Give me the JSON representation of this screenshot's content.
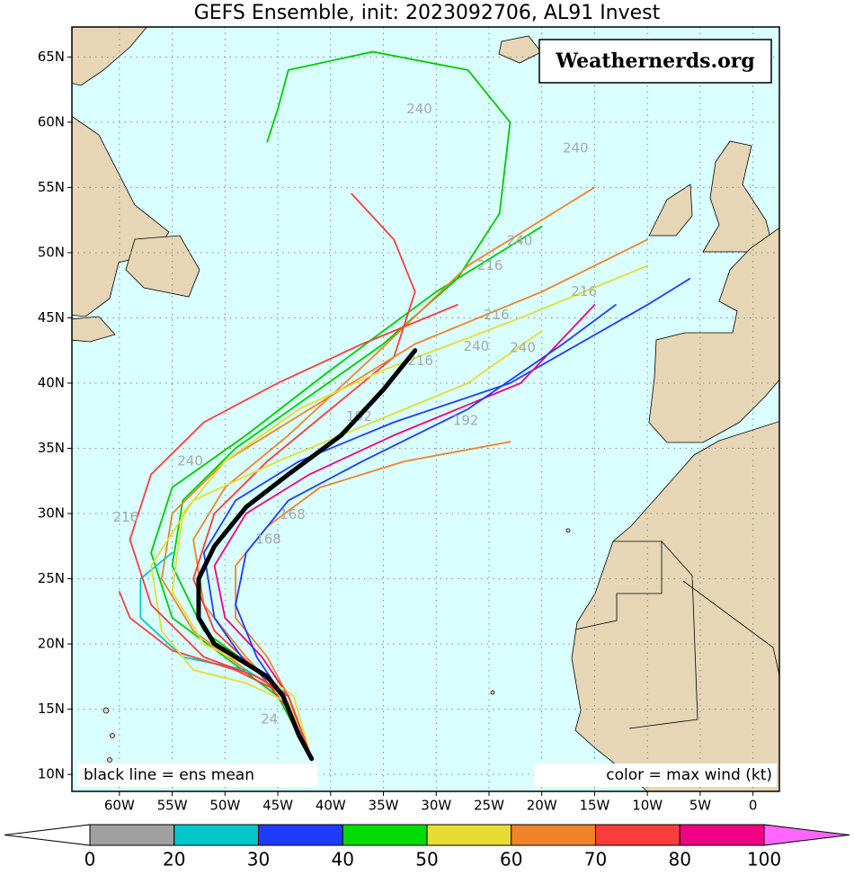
{
  "chart_data": {
    "type": "track-map",
    "title": "GEFS Ensemble, init: 2023092706, AL91 Invest",
    "watermark": "Weathernerds.org",
    "mean_note": "black line = ens mean",
    "color_note": "color = max wind (kt)",
    "xlim": [
      -64.5,
      2.5
    ],
    "ylim": [
      8.7,
      67.3
    ],
    "xticks": [
      {
        "value": -60,
        "label": "60W"
      },
      {
        "value": -55,
        "label": "55W"
      },
      {
        "value": -50,
        "label": "50W"
      },
      {
        "value": -45,
        "label": "45W"
      },
      {
        "value": -40,
        "label": "40W"
      },
      {
        "value": -35,
        "label": "35W"
      },
      {
        "value": -30,
        "label": "30W"
      },
      {
        "value": -25,
        "label": "25W"
      },
      {
        "value": -20,
        "label": "20W"
      },
      {
        "value": -15,
        "label": "15W"
      },
      {
        "value": -10,
        "label": "10W"
      },
      {
        "value": -5,
        "label": "5W"
      },
      0
    ],
    "yticks": [
      {
        "value": 10,
        "label": "10N"
      },
      {
        "value": 15,
        "label": "15N"
      },
      {
        "value": 20,
        "label": "20N"
      },
      {
        "value": 25,
        "label": "25N"
      },
      {
        "value": 30,
        "label": "30N"
      },
      {
        "value": 35,
        "label": "35N"
      },
      {
        "value": 40,
        "label": "40N"
      },
      {
        "value": 45,
        "label": "45N"
      },
      {
        "value": 50,
        "label": "50N"
      },
      {
        "value": 55,
        "label": "55N"
      },
      {
        "value": 60,
        "label": "60N"
      },
      {
        "value": 65,
        "label": "65N"
      }
    ],
    "grid": true,
    "tracks": [
      {
        "color": "#00cc00",
        "lon": [
          -41.8,
          -44,
          -47,
          -52,
          -55,
          -54,
          -49,
          -42,
          -35,
          -28,
          -24,
          -23,
          -27,
          -36,
          -44,
          -45,
          -46
        ],
        "lat": [
          11.2,
          15,
          18,
          21,
          26,
          31,
          35,
          39,
          43,
          48,
          53,
          60,
          64,
          65.4,
          64,
          61,
          58.5
        ]
      },
      {
        "color": "#00cc00",
        "lon": [
          -41.8,
          -45,
          -50,
          -55,
          -57,
          -55,
          -48,
          -40,
          -30,
          -20
        ],
        "lat": [
          11.2,
          16,
          19,
          22,
          27,
          32,
          36,
          41,
          47,
          52
        ]
      },
      {
        "color": "#f08228",
        "lon": [
          -41.8,
          -44.5,
          -48,
          -52,
          -53,
          -50,
          -44,
          -36,
          -27,
          -15
        ],
        "lat": [
          11.2,
          16,
          19,
          23,
          28,
          32,
          36,
          42,
          49,
          55
        ]
      },
      {
        "color": "#fa3c3c",
        "lon": [
          -41.8,
          -44,
          -47,
          -51,
          -53,
          -51,
          -46,
          -40,
          -34,
          -32,
          -34,
          -38
        ],
        "lat": [
          11.2,
          15,
          18,
          21,
          25,
          30,
          34,
          38,
          42,
          47,
          51,
          54.5
        ]
      },
      {
        "color": "#1e3cff",
        "lon": [
          -41.8,
          -44,
          -48,
          -51,
          -52,
          -49,
          -43,
          -34,
          -23,
          -10,
          -6
        ],
        "lat": [
          11.2,
          16,
          18.5,
          22,
          27,
          31,
          34,
          37,
          40,
          46,
          48
        ]
      },
      {
        "color": "#f08228",
        "lon": [
          -41.8,
          -44,
          -48,
          -53,
          -56,
          -55,
          -50,
          -42,
          -32,
          -20,
          -10
        ],
        "lat": [
          11.2,
          16,
          18,
          21,
          25,
          30,
          34,
          38,
          43,
          47,
          51
        ]
      },
      {
        "color": "#f00082",
        "lon": [
          -41.8,
          -44,
          -46.5,
          -50,
          -51,
          -48,
          -42,
          -34,
          -22,
          -15
        ],
        "lat": [
          11.2,
          16,
          19,
          22,
          26,
          30,
          33,
          36,
          40,
          46
        ]
      },
      {
        "color": "#e6dc32",
        "lon": [
          -41.8,
          -43.5,
          -47,
          -52,
          -55,
          -54,
          -50,
          -43,
          -35,
          -22,
          -10
        ],
        "lat": [
          11.2,
          16,
          18,
          20,
          24,
          30,
          34,
          38,
          41,
          45,
          49
        ]
      },
      {
        "color": "#f08228",
        "lon": [
          -41.8,
          -44,
          -46,
          -49,
          -49,
          -46,
          -41,
          -33,
          -23
        ],
        "lat": [
          11.2,
          16,
          19,
          22,
          26,
          29,
          32,
          34,
          35.5
        ]
      },
      {
        "color": "#00c8c8",
        "lon": [
          -41.8,
          -44,
          -48,
          -54,
          -58,
          -58,
          -55
        ],
        "lat": [
          11.2,
          16,
          18,
          19,
          22,
          25,
          27
        ]
      },
      {
        "color": "#fa3c3c",
        "lon": [
          -41.8,
          -44,
          -49,
          -55,
          -59,
          -60
        ],
        "lat": [
          11.2,
          16,
          18,
          19.5,
          22,
          24
        ]
      },
      {
        "color": "#e6dc32",
        "lon": [
          -41.8,
          -44,
          -48,
          -53,
          -56,
          -57,
          -53,
          -45,
          -36,
          -27,
          -20
        ],
        "lat": [
          11.2,
          15.5,
          17,
          18,
          21,
          26,
          31,
          34,
          37,
          40,
          44
        ]
      },
      {
        "color": "#1e3cff",
        "lon": [
          -41.8,
          -44.5,
          -47,
          -49,
          -48,
          -44,
          -37,
          -27,
          -18,
          -13
        ],
        "lat": [
          11.2,
          16,
          19,
          23,
          27,
          31,
          34,
          38,
          43,
          46
        ]
      },
      {
        "color": "#fa3c3c",
        "lon": [
          -41.8,
          -44,
          -47,
          -52,
          -57,
          -59,
          -57,
          -52,
          -45,
          -37,
          -28
        ],
        "lat": [
          11.2,
          16,
          17.5,
          19,
          23,
          28,
          33,
          37,
          40,
          43,
          46
        ]
      }
    ],
    "mean_track": {
      "color": "#000000",
      "lon": [
        -41.8,
        -43,
        -44.5,
        -46,
        -49,
        -51,
        -52.5,
        -52.5,
        -51,
        -48,
        -44,
        -39,
        -35,
        -32
      ],
      "lat": [
        11.2,
        13,
        16,
        17.5,
        19,
        20,
        22,
        25,
        27.5,
        30.5,
        33,
        36,
        39.5,
        42.5
      ]
    },
    "hour_labels": [
      {
        "text": 240,
        "lon": -31.6,
        "lat": 61.0
      },
      {
        "text": 240,
        "lon": -16.8,
        "lat": 58.0
      },
      {
        "text": 240,
        "lon": -22.1,
        "lat": 50.9
      },
      {
        "text": 216,
        "lon": -24.9,
        "lat": 49.0
      },
      {
        "text": 216,
        "lon": -16.0,
        "lat": 47.0
      },
      {
        "text": 216,
        "lon": -24.3,
        "lat": 45.2
      },
      {
        "text": 240,
        "lon": -26.2,
        "lat": 42.8
      },
      {
        "text": 240,
        "lon": -21.8,
        "lat": 42.7
      },
      {
        "text": 216,
        "lon": -31.5,
        "lat": 41.7
      },
      {
        "text": 192,
        "lon": -27.2,
        "lat": 37.1
      },
      {
        "text": 192,
        "lon": -37.3,
        "lat": 37.4
      },
      {
        "text": 240,
        "lon": -53.3,
        "lat": 34.0
      },
      {
        "text": 216,
        "lon": -59.4,
        "lat": 29.7
      },
      {
        "text": 168,
        "lon": -43.6,
        "lat": 29.9
      },
      {
        "text": 168,
        "lon": -45.9,
        "lat": 28.0
      },
      {
        "text": 24,
        "lon": -45.8,
        "lat": 14.2
      }
    ],
    "colorbar": {
      "ticks": [
        0,
        20,
        30,
        40,
        50,
        60,
        70,
        80,
        100
      ],
      "colors": [
        "#a0a0a0",
        "#00c8c8",
        "#1e3cff",
        "#00dc00",
        "#e6dc32",
        "#f08228",
        "#fa3c3c",
        "#f00082"
      ],
      "under_color": "#ffffff",
      "over_color": "#ff66ff"
    }
  }
}
